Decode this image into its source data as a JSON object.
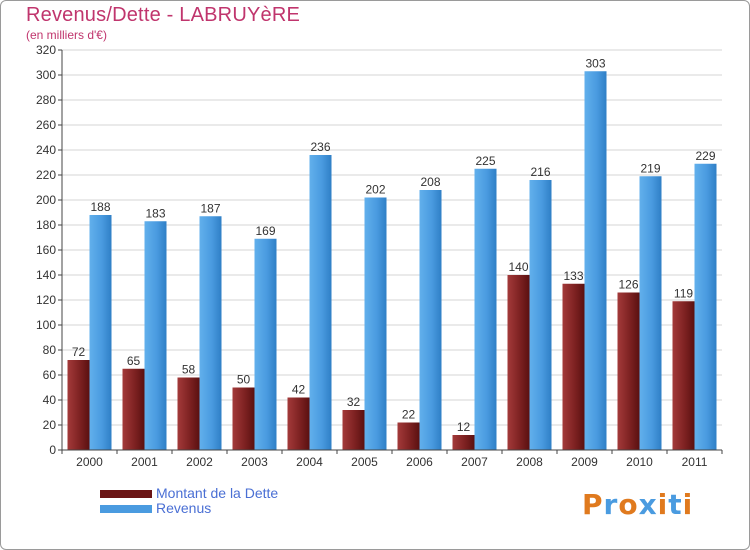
{
  "header": {
    "title": "Revenus/Dette - LABRUYèRE",
    "subtitle": "(en milliers d'€)"
  },
  "chart_data": {
    "type": "bar",
    "categories": [
      "2000",
      "2001",
      "2002",
      "2003",
      "2004",
      "2005",
      "2006",
      "2007",
      "2008",
      "2009",
      "2010",
      "2011"
    ],
    "series": [
      {
        "name": "Montant de la Dette",
        "color": "#7a1e1e",
        "values": [
          72,
          65,
          58,
          50,
          42,
          32,
          22,
          12,
          140,
          133,
          126,
          119
        ]
      },
      {
        "name": "Revenus",
        "color": "#4a9be0",
        "values": [
          188,
          183,
          187,
          169,
          236,
          202,
          208,
          225,
          216,
          303,
          219,
          229
        ]
      }
    ],
    "yticks": [
      0,
      20,
      40,
      60,
      80,
      100,
      120,
      140,
      160,
      180,
      200,
      220,
      240,
      260,
      280,
      300,
      320
    ],
    "ylim": [
      0,
      320
    ],
    "grid": true,
    "legend_position": "bottom-left"
  },
  "legend": {
    "items": [
      {
        "label": "Montant de la Dette",
        "color": "#7a1e1e"
      },
      {
        "label": "Revenus",
        "color": "#4a9be0"
      }
    ]
  },
  "brand": {
    "text": "Proxiti",
    "letter_colors": [
      "#e07a1e",
      "#4a9be0",
      "#e07a1e",
      "#4a9be0",
      "#e07a1e",
      "#4a9be0",
      "#e07a1e"
    ]
  }
}
